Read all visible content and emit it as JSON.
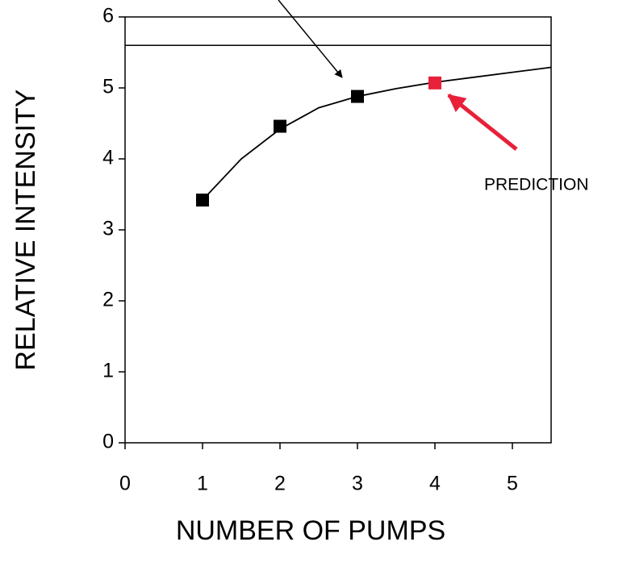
{
  "chart_data": {
    "type": "scatter",
    "x_label": "NUMBER OF PUMPS",
    "y_label": "RELATIVE INTENSITY",
    "xlim": [
      0,
      5.5
    ],
    "xticks": [
      0,
      1,
      2,
      3,
      4,
      5
    ],
    "ylim": [
      0,
      6
    ],
    "yticks": [
      0,
      1,
      2,
      3,
      4,
      5,
      6
    ],
    "reference_y": 5.6,
    "series": [
      {
        "color": "#000000",
        "marker": "square",
        "x": [
          1,
          2,
          3
        ],
        "values": [
          3.42,
          4.46,
          4.88
        ]
      },
      {
        "color": "#e8203a",
        "marker": "square",
        "x": [
          4
        ],
        "values": [
          5.07
        ]
      },
      {
        "color": "#000000",
        "marker": "line",
        "x": [
          1,
          1.5,
          2,
          2.5,
          3,
          3.5,
          4,
          4.5,
          5,
          5.5
        ],
        "values": [
          3.42,
          4.0,
          4.42,
          4.72,
          4.88,
          4.99,
          5.08,
          5.15,
          5.22,
          5.29
        ]
      }
    ],
    "annotation": {
      "text": "PREDICTION",
      "color": "#e8203a"
    }
  }
}
